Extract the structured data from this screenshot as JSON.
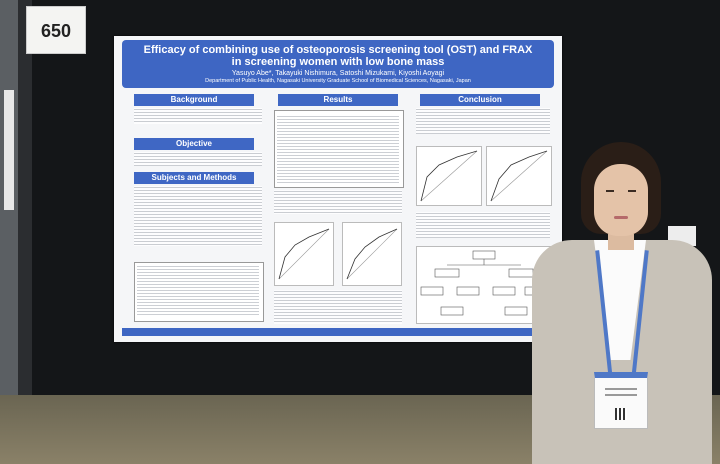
{
  "booth": {
    "number": "650"
  },
  "poster": {
    "title_line1": "Efficacy of combining use of osteoporosis screening tool (OST) and FRAX",
    "title_line2": "in screening women with low bone mass",
    "authors": "Yasuyo Abe*, Takayuki Nishimura, Satoshi Mizukami, Kiyoshi Aoyagi",
    "affiliation": "Department of Public Health, Nagasaki University Graduate School of Biomedical Sciences, Nagasaki, Japan",
    "sections": {
      "background": "Background",
      "objective": "Objective",
      "subjects_methods": "Subjects and Methods",
      "results": "Results",
      "conclusion": "Conclusion"
    }
  },
  "colors": {
    "poster_blue": "#3e66c3",
    "lanyard_blue": "#4f78c7"
  }
}
